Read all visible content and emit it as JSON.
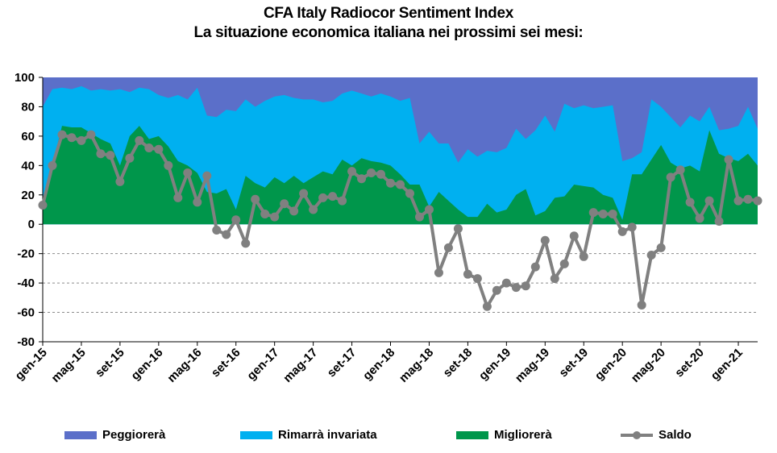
{
  "chart_data": {
    "type": "area",
    "title": "CFA Italy  Radiocor Sentiment Index",
    "subtitle": "La situazione economica italiana nei prossimi sei mesi:",
    "ylim": [
      -80,
      100
    ],
    "yticks": [
      100,
      80,
      60,
      40,
      20,
      0,
      -20,
      -40,
      -60,
      -80
    ],
    "grid": "dashed horizontal below zero",
    "xtick_labels": [
      "gen-15",
      "mag-15",
      "set-15",
      "gen-16",
      "mag-16",
      "set-16",
      "gen-17",
      "mag-17",
      "set-17",
      "gen-18",
      "mag-18",
      "set-18",
      "gen-19",
      "mag-19",
      "set-19",
      "gen-20",
      "mag-20",
      "set-20",
      "gen-21"
    ],
    "legend_position": "bottom",
    "series": [
      {
        "name": "Peggiorerà",
        "color": "#5b6fc9",
        "kind": "area-top",
        "values": [
          100,
          100,
          100,
          100,
          100,
          100,
          100,
          100,
          100,
          100,
          100,
          100,
          100,
          100,
          100,
          100,
          100,
          100,
          100,
          100,
          100,
          100,
          100,
          100,
          100,
          100,
          100,
          100,
          100,
          100,
          100,
          100,
          100,
          100,
          100,
          100,
          100,
          100,
          100,
          100,
          100,
          100,
          100,
          100,
          100,
          100,
          100,
          100,
          100,
          100,
          100,
          100,
          100,
          100,
          100,
          100,
          100,
          100,
          100,
          100,
          100,
          100,
          100,
          100,
          100,
          100,
          100,
          100,
          100,
          100,
          100,
          100,
          100,
          100,
          100
        ]
      },
      {
        "name": "Rimarrà invariata",
        "color": "#00b0f0",
        "kind": "area-cumulative",
        "values": [
          80,
          92,
          93,
          92,
          94,
          91,
          92,
          91,
          92,
          90,
          93,
          92,
          88,
          86,
          88,
          85,
          93,
          74,
          73,
          78,
          77,
          85,
          80,
          84,
          87,
          88,
          86,
          85,
          85,
          83,
          84,
          89,
          91,
          89,
          87,
          89,
          87,
          84,
          86,
          55,
          63,
          55,
          55,
          42,
          51,
          46,
          50,
          49,
          52,
          65,
          58,
          64,
          74,
          63,
          82,
          79,
          81,
          79,
          80,
          81,
          43,
          45,
          49,
          85,
          80,
          73,
          66,
          74,
          70,
          80,
          64,
          65,
          67,
          80,
          65
        ]
      },
      {
        "name": "Migliorerà",
        "color": "#00964b",
        "kind": "area",
        "values": [
          13,
          40,
          67,
          66,
          66,
          62,
          58,
          55,
          40,
          60,
          67,
          58,
          60,
          53,
          43,
          40,
          35,
          22,
          21,
          24,
          10,
          33,
          28,
          25,
          32,
          28,
          33,
          28,
          32,
          36,
          34,
          44,
          40,
          45,
          43,
          42,
          40,
          34,
          27,
          27,
          12,
          22,
          16,
          10,
          5,
          5,
          14,
          8,
          10,
          20,
          24,
          6,
          9,
          18,
          19,
          27,
          26,
          25,
          20,
          18,
          3,
          34,
          34,
          44,
          54,
          42,
          38,
          40,
          36,
          64,
          48,
          45,
          43,
          48,
          40
        ]
      },
      {
        "name": "Saldo",
        "color": "#808080",
        "kind": "line",
        "values": [
          13,
          40,
          61,
          59,
          57,
          61,
          48,
          47,
          29,
          45,
          57,
          52,
          51,
          40,
          18,
          35,
          15,
          33,
          -4,
          -7,
          3,
          -13,
          17,
          7,
          5,
          14,
          9,
          21,
          10,
          18,
          19,
          16,
          36,
          31,
          35,
          34,
          28,
          27,
          21,
          5,
          10,
          -33,
          -16,
          -3,
          -34,
          -37,
          -56,
          -45,
          -40,
          -43,
          -42,
          -29,
          -11,
          -37,
          -27,
          -8,
          -22,
          8,
          7,
          7,
          -5,
          -2,
          -55,
          -21,
          -16,
          32,
          37,
          15,
          4,
          16,
          2,
          44,
          16,
          17,
          16
        ]
      }
    ]
  },
  "legend": {
    "peggiorera": "Peggiorerà",
    "rimarra": "Rimarrà invariata",
    "migliorera": "Migliorerà",
    "saldo": "Saldo"
  },
  "colors": {
    "peggiorera": "#5b6fc9",
    "rimarra": "#00b0f0",
    "migliorera": "#00964b",
    "saldo": "#808080"
  }
}
